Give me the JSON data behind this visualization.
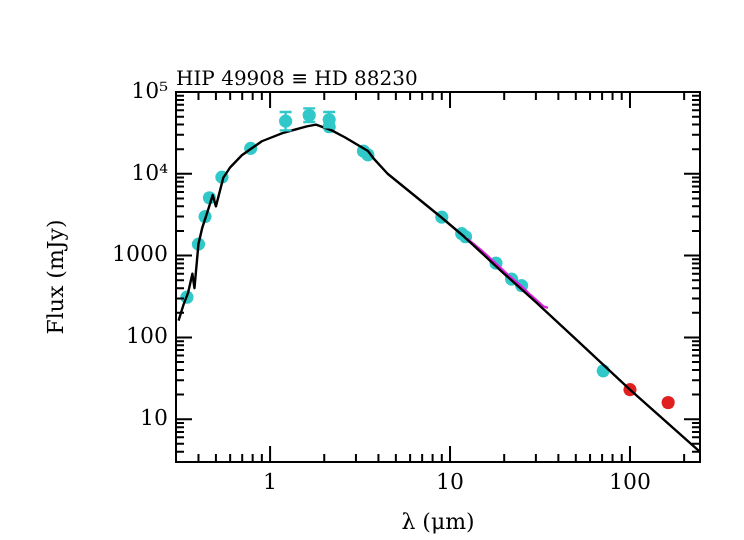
{
  "chart_data": {
    "type": "scatter",
    "title": "HIP 49908 ≡ HD 88230",
    "xlabel": "λ (μm)",
    "ylabel": "Flux (mJy)",
    "log": "xy",
    "grid": false,
    "legend": false,
    "xlim": [
      0.31,
      245
    ],
    "ylim": [
      3,
      100000
    ],
    "xticks": [
      {
        "value": 0.4,
        "label": null
      },
      {
        "value": 0.5,
        "label": null
      },
      {
        "value": 0.6,
        "label": null
      },
      {
        "value": 0.7,
        "label": null
      },
      {
        "value": 0.8,
        "label": null
      },
      {
        "value": 0.9,
        "label": null
      },
      1,
      {
        "value": 2,
        "label": null
      },
      {
        "value": 3,
        "label": null
      },
      {
        "value": 4,
        "label": null
      },
      {
        "value": 5,
        "label": null
      },
      {
        "value": 6,
        "label": null
      },
      {
        "value": 7,
        "label": null
      },
      {
        "value": 8,
        "label": null
      },
      {
        "value": 9,
        "label": null
      },
      10,
      {
        "value": 20,
        "label": null
      },
      {
        "value": 30,
        "label": null
      },
      {
        "value": 40,
        "label": null
      },
      {
        "value": 50,
        "label": null
      },
      {
        "value": 60,
        "label": null
      },
      {
        "value": 70,
        "label": null
      },
      {
        "value": 80,
        "label": null
      },
      {
        "value": 90,
        "label": null
      },
      100,
      {
        "value": 200,
        "label": null
      }
    ],
    "yticks": [
      {
        "value": 4,
        "label": null
      },
      {
        "value": 5,
        "label": null
      },
      {
        "value": 6,
        "label": null
      },
      {
        "value": 7,
        "label": null
      },
      {
        "value": 8,
        "label": null
      },
      {
        "value": 9,
        "label": null
      },
      10,
      {
        "value": 20,
        "label": null
      },
      {
        "value": 30,
        "label": null
      },
      {
        "value": 40,
        "label": null
      },
      {
        "value": 50,
        "label": null
      },
      {
        "value": 60,
        "label": null
      },
      {
        "value": 70,
        "label": null
      },
      {
        "value": 80,
        "label": null
      },
      {
        "value": 90,
        "label": null
      },
      100,
      {
        "value": 200,
        "label": null
      },
      {
        "value": 300,
        "label": null
      },
      {
        "value": 400,
        "label": null
      },
      {
        "value": 500,
        "label": null
      },
      {
        "value": 600,
        "label": null
      },
      {
        "value": 700,
        "label": null
      },
      {
        "value": 800,
        "label": null
      },
      {
        "value": 900,
        "label": null
      },
      1000,
      {
        "value": 2000,
        "label": null
      },
      {
        "value": 3000,
        "label": null
      },
      {
        "value": 4000,
        "label": null
      },
      {
        "value": 5000,
        "label": null
      },
      {
        "value": 6000,
        "label": null
      },
      {
        "value": 7000,
        "label": null
      },
      {
        "value": 8000,
        "label": null
      },
      {
        "value": 9000,
        "label": null
      },
      {
        "value": 10000,
        "label": "10⁴"
      },
      {
        "value": 20000,
        "label": null
      },
      {
        "value": 30000,
        "label": null
      },
      {
        "value": 40000,
        "label": null
      },
      {
        "value": 50000,
        "label": null
      },
      {
        "value": 60000,
        "label": null
      },
      {
        "value": 70000,
        "label": null
      },
      {
        "value": 80000,
        "label": null
      },
      {
        "value": 90000,
        "label": null
      },
      {
        "value": 100000,
        "label": "10⁵"
      }
    ],
    "series": [
      {
        "type": "line",
        "color": "#000000",
        "marker": "none",
        "x": [
          0.31,
          0.33,
          0.35,
          0.37,
          0.38,
          0.4,
          0.42,
          0.45,
          0.48,
          0.5,
          0.55,
          0.6,
          0.7,
          0.9,
          1.2,
          1.6,
          1.8,
          2.2,
          2.6,
          3.5,
          3.8,
          4.5,
          6,
          9,
          12,
          20,
          30,
          50,
          100,
          245
        ],
        "values": [
          160,
          250,
          350,
          600,
          400,
          1400,
          2200,
          3500,
          5500,
          4000,
          9000,
          12000,
          17000,
          25000,
          32000,
          38000,
          40000,
          34000,
          28000,
          19000,
          15000,
          10000,
          6000,
          2900,
          1700,
          600,
          270,
          95,
          23,
          4
        ]
      },
      {
        "type": "line",
        "color": "#e020e0",
        "marker": "none",
        "x": [
          12.5,
          15,
          18,
          21,
          25,
          28,
          30,
          33,
          35
        ],
        "values": [
          1600,
          1150,
          800,
          580,
          420,
          330,
          290,
          240,
          230
        ]
      },
      {
        "type": "scatter",
        "color": "#30c8c8",
        "marker": "circle",
        "x": [
          0.345,
          0.4,
          0.435,
          0.46,
          0.54,
          0.78,
          1.22,
          1.65,
          2.13,
          2.13,
          3.3,
          3.5,
          9,
          11.6,
          12.2,
          18,
          22,
          25,
          71
        ],
        "values": [
          310,
          1380,
          3000,
          5100,
          9100,
          20500,
          44000,
          52000,
          46000,
          37600,
          19000,
          17000,
          2960,
          1860,
          1700,
          810,
          515,
          430,
          39
        ],
        "errors": [
          null,
          null,
          null,
          null,
          null,
          null,
          [
            34000,
            57000
          ],
          [
            43000,
            63000
          ],
          [
            37000,
            57000
          ],
          null,
          null,
          null,
          null,
          null,
          null,
          null,
          null,
          null,
          null
        ]
      },
      {
        "type": "scatter",
        "color": "#e02020",
        "marker": "circle",
        "x": [
          100,
          163
        ],
        "values": [
          23,
          16
        ]
      }
    ]
  }
}
